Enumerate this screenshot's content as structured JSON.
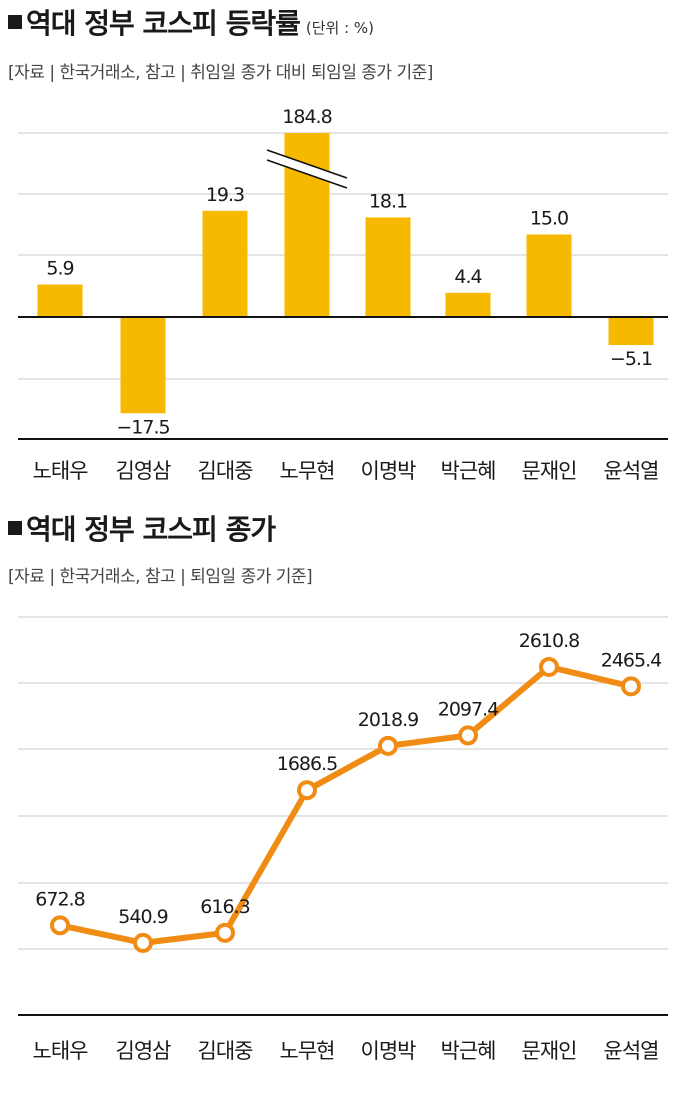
{
  "colors": {
    "bar": "#f7b900",
    "line": "#f08c14",
    "grid": "#c9c9c9",
    "axis": "#111111"
  },
  "chart_data": [
    {
      "type": "bar",
      "title": "역대 정부 코스피 등락률",
      "unit": "(단위 : %)",
      "source": "[자료 | 한국거래소, 참고 | 취임일 종가 대비 퇴임일 종가 기준]",
      "categories": [
        "노태우",
        "김영삼",
        "김대중",
        "노무현",
        "이명박",
        "박근혜",
        "문재인",
        "윤석열"
      ],
      "values": [
        5.9,
        -17.5,
        19.3,
        184.8,
        18.1,
        4.4,
        15.0,
        -5.1
      ],
      "value_labels": [
        "5.9",
        "−17.5",
        "19.3",
        "184.8",
        "18.1",
        "4.4",
        "15.0",
        "−5.1"
      ],
      "axis_break": "노무현",
      "ylim": [
        -20,
        30
      ]
    },
    {
      "type": "line",
      "title": "역대 정부 코스피 종가",
      "source": "[자료 | 한국거래소, 참고 | 퇴임일 종가 기준]",
      "categories": [
        "노태우",
        "김영삼",
        "김대중",
        "노무현",
        "이명박",
        "박근혜",
        "문재인",
        "윤석열"
      ],
      "values": [
        672.8,
        540.9,
        616.3,
        1686.5,
        2018.9,
        2097.4,
        2610.8,
        2465.4
      ],
      "value_labels": [
        "672.8",
        "540.9",
        "616.3",
        "1686.5",
        "2018.9",
        "2097.4",
        "2610.8",
        "2465.4"
      ],
      "ylim": [
        0,
        3000
      ]
    }
  ]
}
